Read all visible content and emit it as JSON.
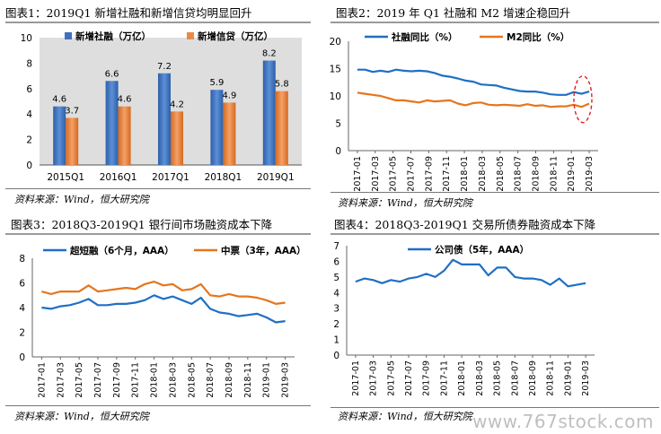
{
  "source_note": "资料来源：Wind，恒大研究院",
  "watermark": "www.767stock.com",
  "chart_data": [
    {
      "type": "bar",
      "title": "图表1：2019Q1 新增社融和新增信贷均明显回升",
      "categories": [
        "2015Q1",
        "2016Q1",
        "2017Q1",
        "2018Q1",
        "2019Q1"
      ],
      "series": [
        {
          "name": "新增社融（万亿）",
          "values": [
            4.6,
            6.6,
            7.2,
            5.9,
            8.2
          ],
          "color": "#4472C4"
        },
        {
          "name": "新增信贷（万亿）",
          "values": [
            3.7,
            4.6,
            4.2,
            4.9,
            5.8
          ],
          "color": "#ED7D31"
        }
      ],
      "ylim": [
        0,
        10
      ],
      "yticks": [
        0,
        2,
        4,
        6,
        8,
        10
      ],
      "legend": "top"
    },
    {
      "type": "line",
      "title": "图表2：2019 年 Q1 社融和 M2 增速企稳回升",
      "x_ticks": [
        "2017-01",
        "2017-03",
        "2017-05",
        "2017-07",
        "2017-09",
        "2017-11",
        "2018-01",
        "2018-03",
        "2018-05",
        "2018-07",
        "2018-09",
        "2018-11",
        "2019-01",
        "2019-03"
      ],
      "series": [
        {
          "name": "社融同比（%）",
          "color": "#1F6FC5",
          "values": [
            14.8,
            14.8,
            14.4,
            14.6,
            14.4,
            14.8,
            14.6,
            14.5,
            14.6,
            14.5,
            14.2,
            13.7,
            13.5,
            13.2,
            12.8,
            12.6,
            12.1,
            12.0,
            11.9,
            11.5,
            11.2,
            10.9,
            10.8,
            10.8,
            10.6,
            10.3,
            10.2,
            10.2,
            10.7,
            10.4,
            10.8
          ]
        },
        {
          "name": "M2同比（%）",
          "color": "#E5761E",
          "values": [
            10.6,
            10.4,
            10.2,
            10.0,
            9.6,
            9.2,
            9.2,
            9.0,
            8.8,
            9.2,
            9.0,
            9.1,
            9.2,
            8.6,
            8.3,
            8.7,
            8.8,
            8.4,
            8.3,
            8.4,
            8.3,
            8.2,
            8.5,
            8.2,
            8.3,
            8.0,
            8.1,
            8.1,
            8.4,
            8.0,
            8.6
          ]
        }
      ],
      "ylim": [
        0,
        20
      ],
      "yticks": [
        0,
        5,
        10,
        15,
        20
      ],
      "legend": "top",
      "annotation": "red dashed ellipse around 2019-01 to 2019-03"
    },
    {
      "type": "line",
      "title": "图表3：2018Q3-2019Q1 银行间市场融资成本下降",
      "x_ticks": [
        "2017-01",
        "2017-03",
        "2017-05",
        "2017-07",
        "2017-09",
        "2017-11",
        "2018-01",
        "2018-03",
        "2018-05",
        "2018-07",
        "2018-09",
        "2018-11",
        "2019-01",
        "2019-03"
      ],
      "series": [
        {
          "name": "超短融（6个月，AAA）",
          "color": "#1F6FC5",
          "values": [
            4.0,
            3.9,
            4.1,
            4.2,
            4.4,
            4.7,
            4.2,
            4.2,
            4.3,
            4.3,
            4.4,
            4.6,
            5.0,
            4.7,
            4.9,
            4.6,
            4.3,
            4.8,
            3.9,
            3.6,
            3.5,
            3.3,
            3.4,
            3.5,
            3.2,
            2.8,
            2.9
          ]
        },
        {
          "name": "中票（3年，AAA）",
          "color": "#E5761E",
          "values": [
            5.3,
            5.1,
            5.3,
            5.3,
            5.3,
            5.8,
            5.3,
            5.4,
            5.5,
            5.6,
            5.5,
            5.9,
            6.1,
            5.8,
            5.9,
            5.4,
            5.5,
            5.9,
            5.0,
            4.9,
            5.1,
            4.9,
            4.9,
            4.8,
            4.6,
            4.3,
            4.4
          ]
        }
      ],
      "ylim": [
        0,
        8
      ],
      "yticks": [
        0,
        2,
        4,
        6,
        8
      ],
      "legend": "top"
    },
    {
      "type": "line",
      "title": "图表4：2018Q3-2019Q1 交易所债券融资成本下降",
      "x_ticks": [
        "2017-01",
        "2017-03",
        "2017-05",
        "2017-07",
        "2017-09",
        "2017-11",
        "2018-01",
        "2018-03",
        "2018-05",
        "2018-07",
        "2018-09",
        "2018-11",
        "2019-01",
        "2019-03"
      ],
      "series": [
        {
          "name": "公司债（5年，AAA）",
          "color": "#1F6FC5",
          "values": [
            4.7,
            4.9,
            4.8,
            4.6,
            4.8,
            4.7,
            4.9,
            5.0,
            5.2,
            5.0,
            5.4,
            6.1,
            5.8,
            5.8,
            5.8,
            5.1,
            5.6,
            5.6,
            5.0,
            4.9,
            4.9,
            4.8,
            4.5,
            4.9,
            4.4,
            4.5,
            4.6
          ]
        }
      ],
      "ylim": [
        0,
        7
      ],
      "yticks": [
        0,
        1,
        2,
        3,
        4,
        5,
        6,
        7
      ],
      "legend": "top"
    }
  ]
}
